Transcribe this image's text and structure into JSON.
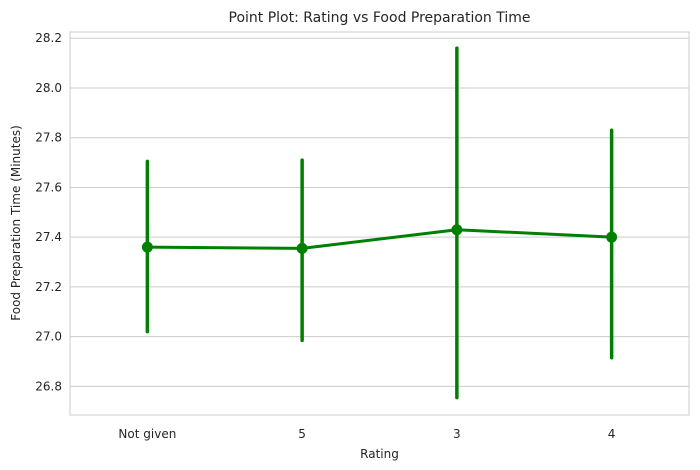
{
  "chart_data": {
    "type": "line",
    "title": "Point Plot: Rating vs Food Preparation Time",
    "xlabel": "Rating",
    "ylabel": "Food Preparation Time (Minutes)",
    "categories": [
      "Not given",
      "5",
      "3",
      "4"
    ],
    "series": [
      {
        "values": [
          27.36,
          27.355,
          27.43,
          27.4
        ],
        "ci_low": [
          27.02,
          26.985,
          26.755,
          26.915
        ],
        "ci_high": [
          27.705,
          27.71,
          28.16,
          27.83
        ],
        "color": "#008000"
      }
    ],
    "yticks": [
      "26.8",
      "27.0",
      "27.2",
      "27.4",
      "27.6",
      "27.8",
      "28.0",
      "28.2"
    ],
    "ylim": [
      26.685,
      28.225
    ],
    "grid": "horizontal",
    "legend": "none",
    "style": "whitegrid"
  }
}
